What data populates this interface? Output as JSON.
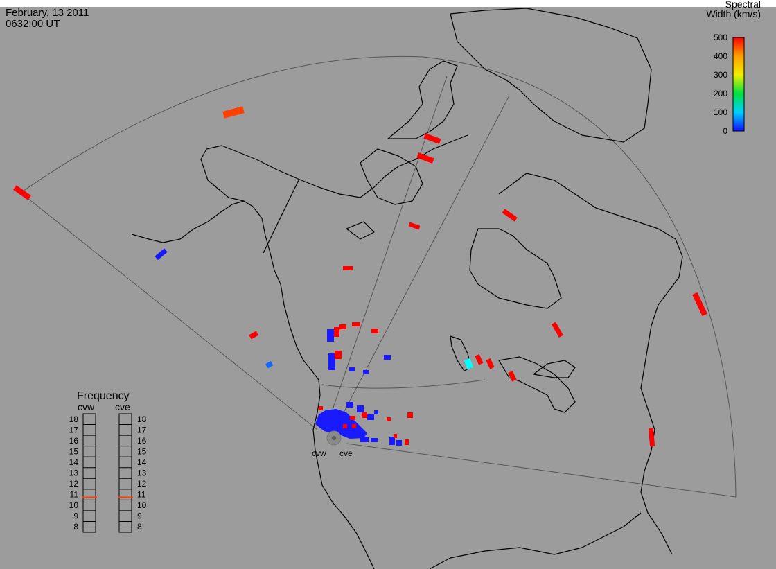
{
  "header": {
    "date": "February, 13 2011",
    "time": "0632:00 UT"
  },
  "colorbar": {
    "title_line1": "Spectral",
    "title_line2": "Width (km/s)",
    "ticks": [
      "500",
      "400",
      "300",
      "200",
      "100",
      "0"
    ],
    "tick_values": [
      500,
      400,
      300,
      200,
      100,
      0
    ],
    "stops": [
      "#1010ff",
      "#00d0ff",
      "#00e040",
      "#f0f000",
      "#ffa000",
      "#ff0000"
    ]
  },
  "frequency_panel": {
    "title": "Frequency",
    "radar_left": "cvw",
    "radar_right": "cve",
    "levels": [
      "18",
      "17",
      "16",
      "15",
      "14",
      "13",
      "12",
      "11",
      "10",
      "9",
      "8"
    ],
    "cvw_value": 10.75,
    "cve_value": 10.75,
    "indicator_color": "#ff4000"
  },
  "radars": {
    "west_label": "cvw",
    "east_label": "cve"
  },
  "colors": {
    "background": "#9c9c9c",
    "coast": "#000000",
    "fov": "#555555"
  }
}
